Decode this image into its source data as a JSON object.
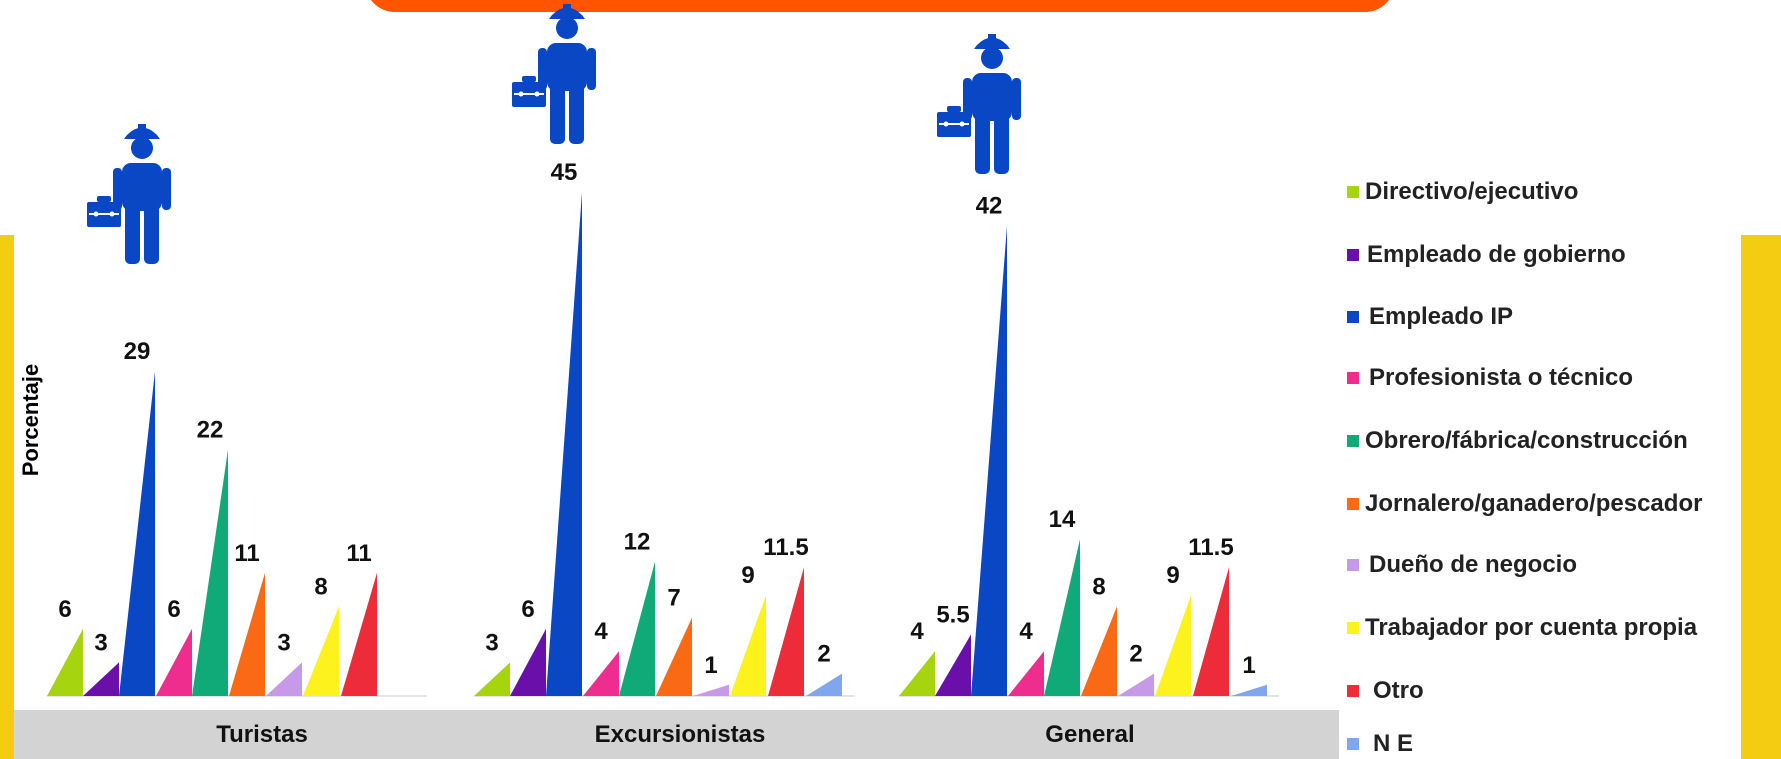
{
  "chart_data": {
    "type": "bar",
    "ylabel": "Porcentaje",
    "categories": [
      "Turistas",
      "Excursionistas",
      "General"
    ],
    "series": [
      {
        "name": "Directivo/ejecutivo",
        "color": "#a6d40e",
        "values": [
          "6",
          "3",
          "4"
        ]
      },
      {
        "name": "Empleado de gobierno",
        "color": "#6a0faa",
        "values": [
          "3",
          "6",
          "5.5"
        ]
      },
      {
        "name": "Empleado IP",
        "color": "#0a47c4",
        "values": [
          "29",
          "45",
          "42"
        ]
      },
      {
        "name": "Profesionista o técnico",
        "color": "#ee2d8e",
        "values": [
          "6",
          "4",
          "4"
        ]
      },
      {
        "name": "Obrero/fábrica/construcción",
        "color": "#10aa78",
        "values": [
          "22",
          "12",
          "14"
        ]
      },
      {
        "name": "Jornalero/ganadero/pescador",
        "color": "#fa6914",
        "values": [
          "11",
          "7",
          "8"
        ]
      },
      {
        "name": "Dueño de negocio",
        "color": "#c69ae8",
        "values": [
          "3",
          "1",
          "2"
        ]
      },
      {
        "name": "Trabajador por cuenta propia",
        "color": "#fef21c",
        "values": [
          "8",
          "9",
          "9"
        ]
      },
      {
        "name": "Otro",
        "color": "#ee2b38",
        "values": [
          "11",
          "11.5",
          "11.5"
        ]
      },
      {
        "name": "N E",
        "color": "#7fa6ee",
        "values": [
          null,
          "2",
          "1"
        ]
      }
    ],
    "grid": false,
    "legend_position": "right"
  },
  "colors": {
    "banner": "#ff5500",
    "axis_band": "#d3d3d3",
    "frame_yellow": "#f4cc12",
    "figure_icon": "#0a47c4"
  },
  "icons": [
    "worker-briefcase-icon"
  ]
}
